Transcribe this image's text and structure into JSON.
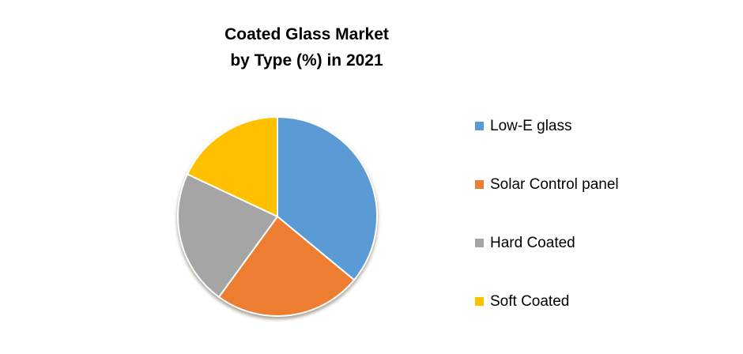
{
  "title": {
    "line1": "Coated Glass Market",
    "line2": "by Type (%) in 2021"
  },
  "chart_data": {
    "type": "pie",
    "title": "Coated Glass Market by Type (%) in 2021",
    "unit": "%",
    "start_angle_deg": 0,
    "direction": "clockwise",
    "legend_position": "right",
    "data_labels_shown": false,
    "slices": [
      {
        "label": "Low-E glass",
        "value": 36,
        "color": "#5B9BD5"
      },
      {
        "label": "Solar Control panel",
        "value": 24,
        "color": "#ED7D31"
      },
      {
        "label": "Hard Coated",
        "value": 22,
        "color": "#A5A5A5"
      },
      {
        "label": "Soft Coated",
        "value": 18,
        "color": "#FFC000"
      }
    ]
  }
}
